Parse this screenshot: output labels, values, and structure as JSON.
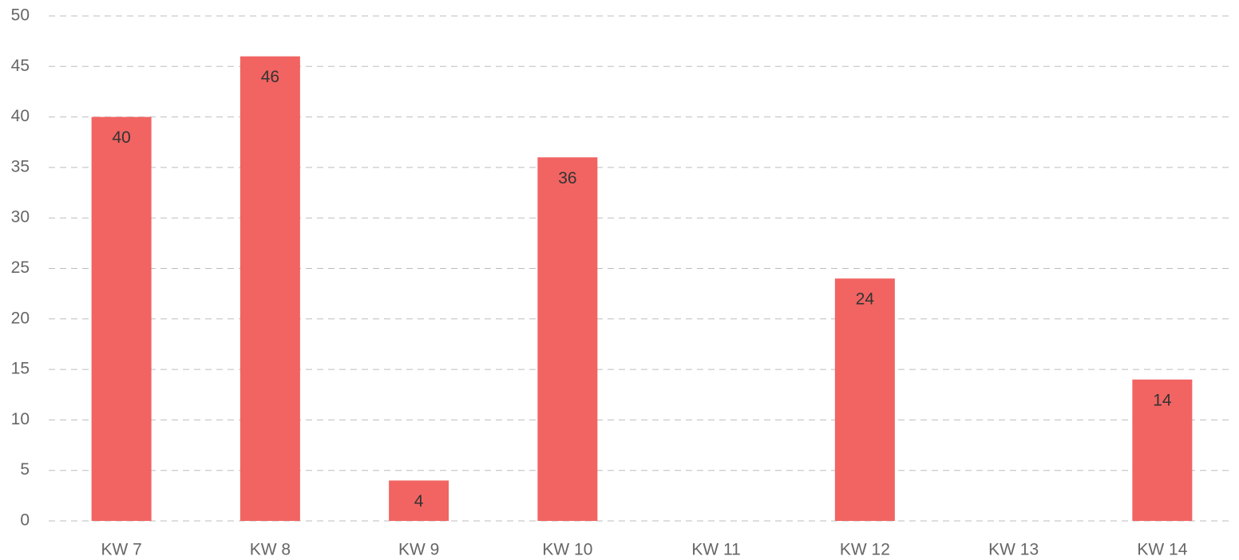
{
  "chart_data": {
    "type": "bar",
    "categories": [
      "KW 7",
      "KW 8",
      "KW 9",
      "KW 10",
      "KW 11",
      "KW 12",
      "KW 13",
      "KW 14"
    ],
    "values": [
      40,
      46,
      4,
      36,
      null,
      24,
      null,
      14
    ],
    "color": "#f16462",
    "ylim": [
      0,
      50
    ],
    "yticks": [
      0,
      5,
      10,
      15,
      20,
      25,
      30,
      35,
      40,
      45,
      50
    ],
    "grid": true,
    "data_labels": true
  }
}
